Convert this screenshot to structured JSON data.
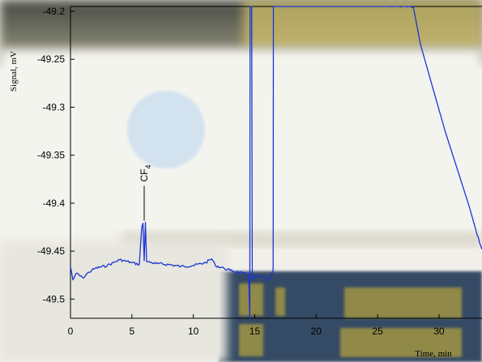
{
  "chart_data": {
    "type": "line",
    "xlabel": "Time, min",
    "ylabel": "Signal, mV",
    "xlim": [
      0,
      33.5
    ],
    "ylim": [
      -49.52,
      -49.195
    ],
    "x_ticks": [
      0,
      5,
      10,
      15,
      20,
      25,
      30
    ],
    "x_tick_labels": [
      "0",
      "5",
      "10",
      "15",
      "20",
      "25",
      "30"
    ],
    "y_ticks": [
      -49.2,
      -49.25,
      -49.3,
      -49.35,
      -49.4,
      -49.45,
      -49.5
    ],
    "y_tick_labels": [
      "-49.2",
      "-49.25",
      "-49.3",
      "-49.35",
      "-49.4",
      "-49.45",
      "-49.5"
    ],
    "grid": false,
    "line_color": "#1a35d6",
    "annotations": [
      {
        "text": "CF",
        "subscript": "4",
        "x": 6.0,
        "y": -49.42
      }
    ],
    "series": [
      {
        "points": [
          [
            0,
            -49.466
          ],
          [
            0.2,
            -49.48
          ],
          [
            0.5,
            -49.473
          ],
          [
            1,
            -49.478
          ],
          [
            1.5,
            -49.472
          ],
          [
            2,
            -49.468
          ],
          [
            3,
            -49.465
          ],
          [
            3.5,
            -49.462
          ],
          [
            4,
            -49.459
          ],
          [
            5,
            -49.462
          ],
          [
            5.6,
            -49.464
          ],
          [
            5.8,
            -49.425
          ],
          [
            5.9,
            -49.421
          ],
          [
            6.0,
            -49.46
          ],
          [
            6.1,
            -49.42
          ],
          [
            6.2,
            -49.461
          ],
          [
            7,
            -49.463
          ],
          [
            8,
            -49.464
          ],
          [
            9,
            -49.466
          ],
          [
            10,
            -49.465
          ],
          [
            11,
            -49.462
          ],
          [
            11.5,
            -49.458
          ],
          [
            11.8,
            -49.465
          ],
          [
            12.5,
            -49.468
          ],
          [
            13,
            -49.47
          ],
          [
            14,
            -49.473
          ],
          [
            14.5,
            -49.475
          ],
          [
            14.6,
            -49.52
          ],
          [
            14.62,
            -49.19
          ],
          [
            14.75,
            -49.19
          ],
          [
            14.8,
            -49.478
          ],
          [
            15.5,
            -49.476
          ],
          [
            16.0,
            -49.48
          ],
          [
            16.3,
            -49.478
          ],
          [
            16.5,
            -49.47
          ],
          [
            16.52,
            -49.19
          ],
          [
            27.9,
            -49.195
          ],
          [
            28.5,
            -49.235
          ],
          [
            29.5,
            -49.28
          ],
          [
            30.5,
            -49.325
          ],
          [
            31.5,
            -49.365
          ],
          [
            32.5,
            -49.405
          ],
          [
            33.0,
            -49.428
          ],
          [
            33.5,
            -49.448
          ]
        ]
      }
    ]
  }
}
